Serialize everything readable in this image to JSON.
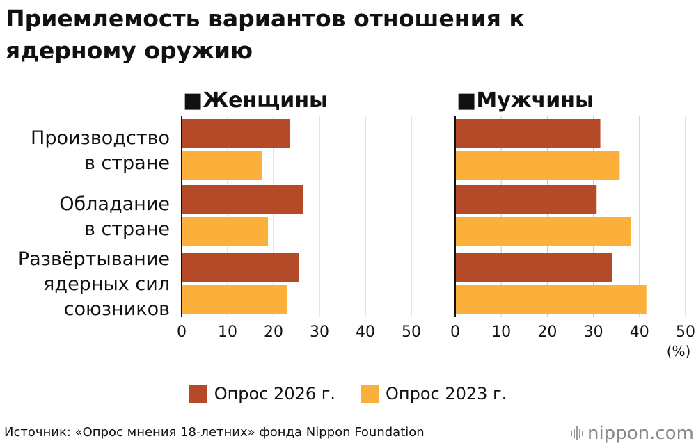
{
  "title": "Приемлемость вариантов отношения к ядерному оружию",
  "chart_data": [
    {
      "type": "bar",
      "title": "■Женщины",
      "categories": [
        "Производство\nв стране",
        "Обладание\nв стране",
        "Развёртывание\nядерных сил\nсоюзников"
      ],
      "series": [
        {
          "name": "Опрос 2026 г.",
          "values": [
            23.5,
            26.5,
            25.5
          ]
        },
        {
          "name": "Опрос 2023 г.",
          "values": [
            17.5,
            18.8,
            23.0
          ]
        }
      ],
      "xlim": [
        0,
        50
      ],
      "ticks": [
        "0",
        "10",
        "20",
        "30",
        "40",
        "50"
      ],
      "grid": true
    },
    {
      "type": "bar",
      "title": "■Мужчины",
      "categories": [
        "Производство\nв стране",
        "Обладание\nв стране",
        "Развёртывание\nядерных сил\nсоюзников"
      ],
      "series": [
        {
          "name": "Опрос 2026 г.",
          "values": [
            31.5,
            30.7,
            34.0
          ]
        },
        {
          "name": "Опрос 2023 г.",
          "values": [
            35.7,
            38.2,
            41.5
          ]
        }
      ],
      "xlim": [
        0,
        50
      ],
      "ticks": [
        "0",
        "10",
        "20",
        "30",
        "40",
        "50"
      ],
      "grid": true,
      "unit_label": "(%)"
    }
  ],
  "legend": [
    {
      "label": "Опрос 2026 г.",
      "color": "#b44a27"
    },
    {
      "label": "Опрос 2023 г.",
      "color": "#fbb03b"
    }
  ],
  "source": "Источник: «Опрос мнения 18-летних» фонда Nippon Foundation",
  "logo": "nippon.com"
}
